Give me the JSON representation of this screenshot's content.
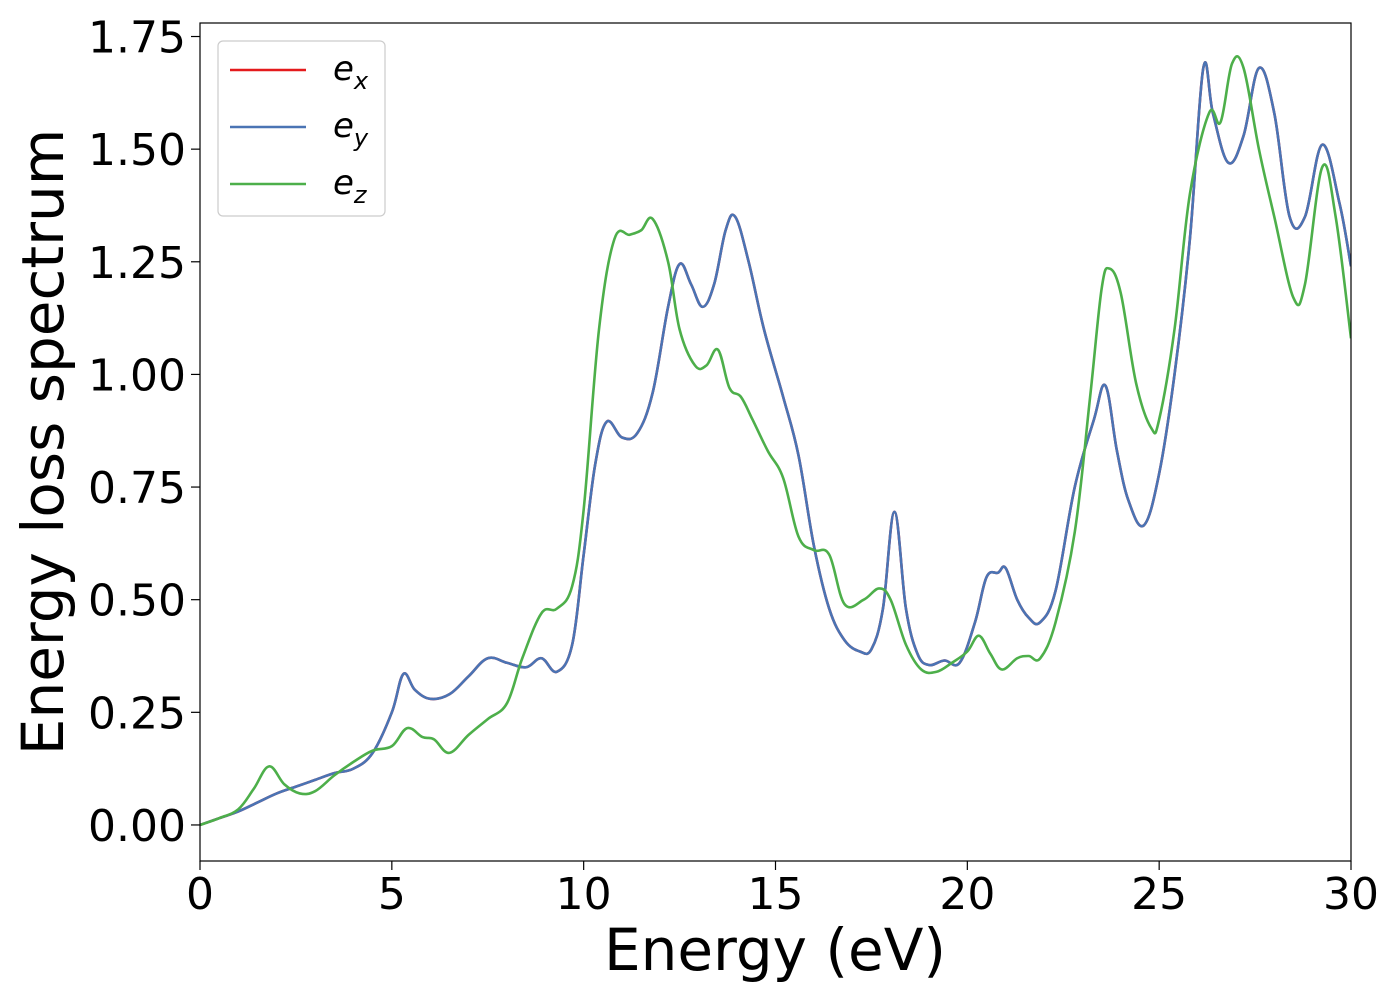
{
  "chart_data": {
    "type": "line",
    "title": "",
    "xlabel": "Energy (eV)",
    "ylabel": "Energy loss spectrum",
    "xlim": [
      0,
      30
    ],
    "ylim": [
      -0.08,
      1.78
    ],
    "x_ticks": [
      0,
      5,
      10,
      15,
      20,
      25,
      30
    ],
    "y_ticks": [
      0.0,
      0.25,
      0.5,
      0.75,
      1.0,
      1.25,
      1.5,
      1.75
    ],
    "x_tick_labels": [
      "0",
      "5",
      "10",
      "15",
      "20",
      "25",
      "30"
    ],
    "y_tick_labels": [
      "0.00",
      "0.25",
      "0.50",
      "0.75",
      "1.00",
      "1.25",
      "1.50",
      "1.75"
    ],
    "grid": false,
    "legend_position": "top-left",
    "series": [
      {
        "name": "e_x",
        "legend_main": "e",
        "legend_sub": "x",
        "color": "#e41a1c",
        "x": [
          0,
          0.5,
          1,
          1.5,
          2,
          2.5,
          3,
          3.5,
          4,
          4.5,
          5,
          5.3,
          5.6,
          6,
          6.5,
          7,
          7.5,
          8,
          8.5,
          8.9,
          9.3,
          9.7,
          10,
          10.3,
          10.6,
          11,
          11.4,
          11.8,
          12.2,
          12.5,
          12.8,
          13.1,
          13.4,
          13.7,
          13.95,
          14.3,
          14.7,
          15.2,
          15.6,
          16,
          16.4,
          16.8,
          17.2,
          17.5,
          17.8,
          18.1,
          18.4,
          18.7,
          19,
          19.4,
          19.8,
          20.2,
          20.5,
          20.8,
          21,
          21.3,
          21.6,
          21.9,
          22.3,
          22.8,
          23.3,
          23.6,
          23.9,
          24.2,
          24.6,
          25,
          25.4,
          25.8,
          26.15,
          26.4,
          26.8,
          27.2,
          27.6,
          28,
          28.4,
          28.8,
          29.25,
          29.7,
          30
        ],
        "y": [
          0,
          0.015,
          0.03,
          0.05,
          0.07,
          0.085,
          0.1,
          0.115,
          0.125,
          0.16,
          0.25,
          0.335,
          0.3,
          0.28,
          0.29,
          0.33,
          0.37,
          0.36,
          0.35,
          0.37,
          0.34,
          0.4,
          0.6,
          0.8,
          0.895,
          0.86,
          0.87,
          0.96,
          1.15,
          1.245,
          1.2,
          1.15,
          1.2,
          1.32,
          1.35,
          1.25,
          1.1,
          0.95,
          0.82,
          0.62,
          0.48,
          0.41,
          0.385,
          0.39,
          0.48,
          0.695,
          0.48,
          0.38,
          0.355,
          0.365,
          0.36,
          0.45,
          0.55,
          0.56,
          0.57,
          0.5,
          0.46,
          0.45,
          0.52,
          0.75,
          0.9,
          0.975,
          0.83,
          0.72,
          0.665,
          0.78,
          1.0,
          1.3,
          1.68,
          1.58,
          1.47,
          1.53,
          1.68,
          1.58,
          1.35,
          1.35,
          1.51,
          1.38,
          1.24
        ]
      },
      {
        "name": "e_y",
        "legend_main": "e",
        "legend_sub": "y",
        "color": "#4a74b4",
        "x": [
          0,
          0.5,
          1,
          1.5,
          2,
          2.5,
          3,
          3.5,
          4,
          4.5,
          5,
          5.3,
          5.6,
          6,
          6.5,
          7,
          7.5,
          8,
          8.5,
          8.9,
          9.3,
          9.7,
          10,
          10.3,
          10.6,
          11,
          11.4,
          11.8,
          12.2,
          12.5,
          12.8,
          13.1,
          13.4,
          13.7,
          13.95,
          14.3,
          14.7,
          15.2,
          15.6,
          16,
          16.4,
          16.8,
          17.2,
          17.5,
          17.8,
          18.1,
          18.4,
          18.7,
          19,
          19.4,
          19.8,
          20.2,
          20.5,
          20.8,
          21,
          21.3,
          21.6,
          21.9,
          22.3,
          22.8,
          23.3,
          23.6,
          23.9,
          24.2,
          24.6,
          25,
          25.4,
          25.8,
          26.15,
          26.4,
          26.8,
          27.2,
          27.6,
          28,
          28.4,
          28.8,
          29.25,
          29.7,
          30
        ],
        "y": [
          0,
          0.015,
          0.03,
          0.05,
          0.07,
          0.085,
          0.1,
          0.115,
          0.125,
          0.16,
          0.25,
          0.335,
          0.3,
          0.28,
          0.29,
          0.33,
          0.37,
          0.36,
          0.35,
          0.37,
          0.34,
          0.4,
          0.6,
          0.8,
          0.895,
          0.86,
          0.87,
          0.96,
          1.15,
          1.245,
          1.2,
          1.15,
          1.2,
          1.32,
          1.35,
          1.25,
          1.1,
          0.95,
          0.82,
          0.62,
          0.48,
          0.41,
          0.385,
          0.39,
          0.48,
          0.695,
          0.48,
          0.38,
          0.355,
          0.365,
          0.36,
          0.45,
          0.55,
          0.56,
          0.57,
          0.5,
          0.46,
          0.45,
          0.52,
          0.75,
          0.9,
          0.975,
          0.83,
          0.72,
          0.665,
          0.78,
          1.0,
          1.3,
          1.68,
          1.58,
          1.47,
          1.53,
          1.68,
          1.58,
          1.35,
          1.35,
          1.51,
          1.38,
          1.24
        ]
      },
      {
        "name": "e_z",
        "legend_main": "e",
        "legend_sub": "z",
        "color": "#4daf4a",
        "x": [
          0,
          0.5,
          1,
          1.4,
          1.8,
          2.2,
          2.6,
          3,
          3.5,
          4,
          4.5,
          5,
          5.4,
          5.8,
          6.1,
          6.5,
          7,
          7.5,
          8,
          8.4,
          8.9,
          9.3,
          9.7,
          10,
          10.4,
          10.8,
          11.2,
          11.5,
          11.8,
          12.2,
          12.5,
          12.9,
          13.2,
          13.5,
          13.8,
          14.1,
          14.4,
          14.8,
          15.2,
          15.6,
          16,
          16.4,
          16.8,
          17.3,
          17.7,
          18,
          18.4,
          18.8,
          19.2,
          19.6,
          20,
          20.3,
          20.6,
          20.9,
          21.3,
          21.6,
          21.9,
          22.3,
          22.8,
          23.2,
          23.5,
          23.7,
          24,
          24.4,
          24.8,
          25,
          25.4,
          25.8,
          26.3,
          26.6,
          26.9,
          27.2,
          27.6,
          28,
          28.5,
          28.8,
          29.25,
          29.6,
          30
        ],
        "y": [
          0,
          0.015,
          0.035,
          0.08,
          0.13,
          0.09,
          0.07,
          0.075,
          0.11,
          0.14,
          0.165,
          0.175,
          0.215,
          0.195,
          0.19,
          0.16,
          0.2,
          0.235,
          0.27,
          0.37,
          0.47,
          0.48,
          0.53,
          0.7,
          1.1,
          1.3,
          1.31,
          1.32,
          1.345,
          1.25,
          1.1,
          1.02,
          1.02,
          1.055,
          0.97,
          0.95,
          0.9,
          0.83,
          0.77,
          0.64,
          0.61,
          0.6,
          0.49,
          0.5,
          0.525,
          0.5,
          0.4,
          0.345,
          0.34,
          0.36,
          0.385,
          0.42,
          0.38,
          0.345,
          0.37,
          0.375,
          0.37,
          0.45,
          0.65,
          0.95,
          1.19,
          1.235,
          1.18,
          0.98,
          0.88,
          0.9,
          1.1,
          1.4,
          1.58,
          1.56,
          1.69,
          1.68,
          1.5,
          1.35,
          1.17,
          1.2,
          1.46,
          1.35,
          1.08
        ]
      }
    ]
  }
}
